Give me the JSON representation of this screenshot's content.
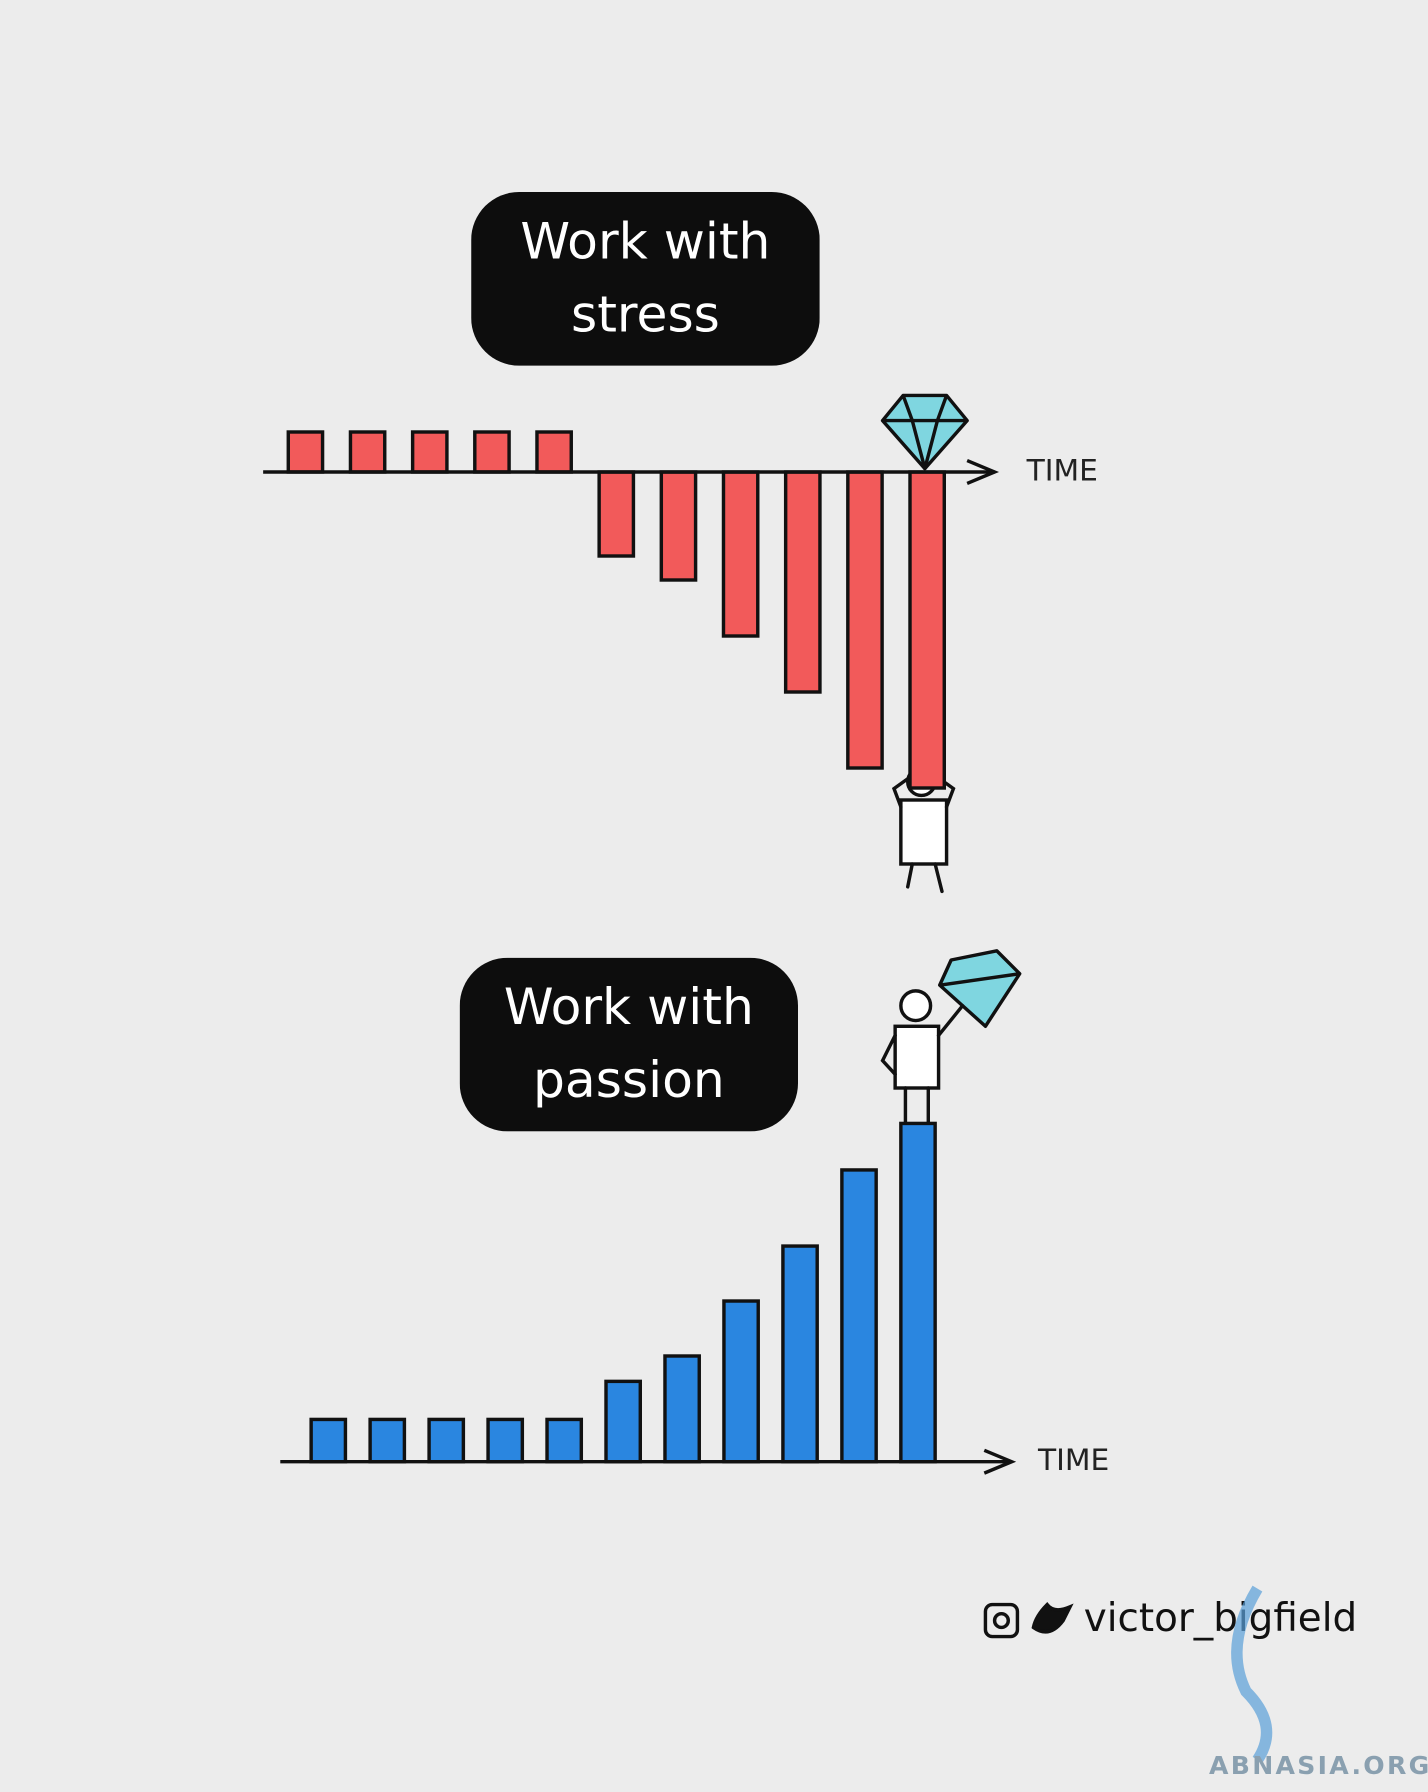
{
  "chart_data": [
    {
      "type": "bar",
      "title": "Work with stress",
      "xlabel": "TIME",
      "color": "#f25a5a",
      "values": [
        1,
        1,
        1,
        1,
        1,
        -2.1,
        -2.7,
        -4.1,
        -5.5,
        -7.4,
        -7.9
      ],
      "ylim": [
        -8,
        1
      ]
    },
    {
      "type": "bar",
      "title": "Work with passion",
      "xlabel": "TIME",
      "color": "#2a86e0",
      "values": [
        1,
        1,
        1,
        1,
        1,
        1.9,
        2.5,
        3.8,
        5.1,
        6.9,
        8
      ],
      "ylim": [
        0,
        8
      ]
    }
  ],
  "credit": "victor_bigfield",
  "watermark": "ABNASIA.ORG"
}
